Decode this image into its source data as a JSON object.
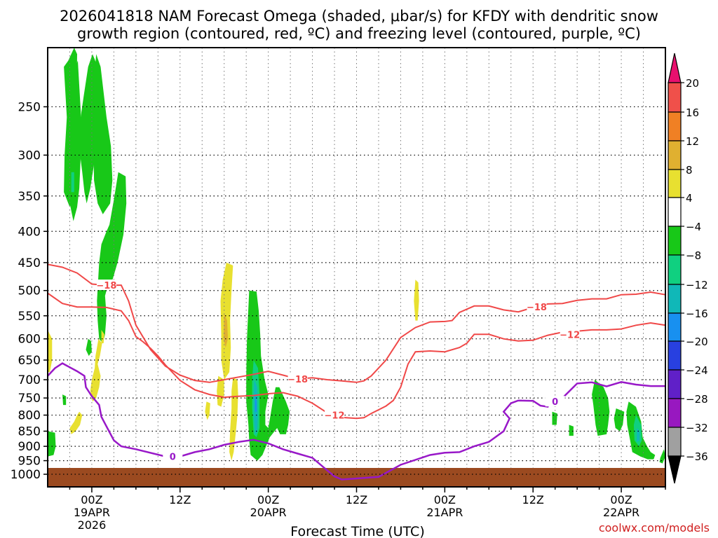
{
  "chart_data": {
    "type": "heatmap",
    "title_line1": "2026041818 NAM Forecast Omega (shaded, μbar/s) for KFDY with dendritic snow",
    "title_line2": "growth region (contoured, red, ºC) and freezing level (contoured, purple, ºC)",
    "xlabel": "Forecast Time (UTC)",
    "ylabel": "",
    "y_scale": "log-pressure",
    "y_ticks": [
      250,
      300,
      350,
      400,
      450,
      500,
      550,
      600,
      650,
      700,
      750,
      800,
      850,
      900,
      950,
      1000
    ],
    "y_range_hPa": [
      200,
      1000
    ],
    "x_range_hours": [
      18,
      102
    ],
    "x_ticks": [
      {
        "hour": 24,
        "label": "00Z",
        "sub1": "19APR",
        "sub2": "2026"
      },
      {
        "hour": 36,
        "label": "12Z",
        "sub1": "",
        "sub2": ""
      },
      {
        "hour": 48,
        "label": "00Z",
        "sub1": "20APR",
        "sub2": ""
      },
      {
        "hour": 60,
        "label": "12Z",
        "sub1": "",
        "sub2": ""
      },
      {
        "hour": 72,
        "label": "00Z",
        "sub1": "21APR",
        "sub2": ""
      },
      {
        "hour": 84,
        "label": "12Z",
        "sub1": "",
        "sub2": ""
      },
      {
        "hour": 96,
        "label": "00Z",
        "sub1": "22APR",
        "sub2": ""
      }
    ],
    "grid": true,
    "colorbar": {
      "labels": [
        "20",
        "16",
        "12",
        "8",
        "4",
        "−4",
        "−8",
        "−12",
        "−16",
        "−20",
        "−24",
        "−28",
        "−32",
        "−36"
      ],
      "colors": [
        "#e8106e",
        "#f0504a",
        "#f08024",
        "#e0b030",
        "#e8e030",
        "#ffffff",
        "#18c818",
        "#10d080",
        "#10b8b8",
        "#1890f0",
        "#2840e0",
        "#6020c8",
        "#9818c0",
        "#a0a0a0",
        "#000000"
      ]
    },
    "surface_color": "#9b4a20",
    "contours": {
      "dgz_color": "#f04848",
      "freezing_color": "#9818c8",
      "dgz_labels": [
        "−18",
        "−18",
        "−12",
        "−18",
        "−12"
      ],
      "freezing_labels": [
        "0",
        "0"
      ],
      "dgz_upper": [
        [
          18,
          453
        ],
        [
          20,
          458
        ],
        [
          22,
          468
        ],
        [
          24,
          488
        ],
        [
          26,
          490
        ],
        [
          28,
          490
        ],
        [
          29,
          520
        ],
        [
          30,
          570
        ],
        [
          32,
          625
        ],
        [
          34,
          665
        ],
        [
          36,
          688
        ],
        [
          38,
          702
        ],
        [
          40,
          707
        ],
        [
          42,
          700
        ],
        [
          44,
          693
        ],
        [
          46,
          686
        ],
        [
          48,
          678
        ],
        [
          50,
          688
        ],
        [
          52,
          698
        ],
        [
          54,
          695
        ],
        [
          56,
          700
        ],
        [
          58,
          703
        ],
        [
          60,
          707
        ],
        [
          61,
          703
        ],
        [
          62,
          690
        ],
        [
          64,
          650
        ],
        [
          66,
          597
        ],
        [
          68,
          575
        ],
        [
          70,
          563
        ],
        [
          72,
          562
        ],
        [
          73,
          560
        ],
        [
          74,
          543
        ],
        [
          76,
          530
        ],
        [
          78,
          530
        ],
        [
          80,
          538
        ],
        [
          82,
          542
        ],
        [
          84,
          533
        ],
        [
          86,
          526
        ],
        [
          88,
          525
        ],
        [
          90,
          519
        ],
        [
          92,
          516
        ],
        [
          94,
          516
        ],
        [
          96,
          508
        ],
        [
          98,
          507
        ],
        [
          100,
          503
        ],
        [
          102,
          508
        ]
      ],
      "dgz_lower": [
        [
          18,
          505
        ],
        [
          20,
          525
        ],
        [
          22,
          532
        ],
        [
          24,
          532
        ],
        [
          26,
          533
        ],
        [
          28,
          540
        ],
        [
          29,
          560
        ],
        [
          30,
          595
        ],
        [
          31,
          607
        ],
        [
          32,
          622
        ],
        [
          33,
          640
        ],
        [
          34,
          662
        ],
        [
          36,
          702
        ],
        [
          38,
          727
        ],
        [
          40,
          740
        ],
        [
          42,
          748
        ],
        [
          44,
          745
        ],
        [
          46,
          743
        ],
        [
          48,
          738
        ],
        [
          50,
          735
        ],
        [
          52,
          745
        ],
        [
          54,
          765
        ],
        [
          56,
          793
        ],
        [
          58,
          807
        ],
        [
          60,
          810
        ],
        [
          61,
          808
        ],
        [
          62,
          795
        ],
        [
          64,
          773
        ],
        [
          65,
          757
        ],
        [
          66,
          720
        ],
        [
          67,
          660
        ],
        [
          68,
          630
        ],
        [
          70,
          628
        ],
        [
          72,
          630
        ],
        [
          74,
          620
        ],
        [
          75,
          610
        ],
        [
          76,
          590
        ],
        [
          78,
          590
        ],
        [
          80,
          600
        ],
        [
          82,
          605
        ],
        [
          84,
          603
        ],
        [
          86,
          592
        ],
        [
          88,
          585
        ],
        [
          90,
          583
        ],
        [
          92,
          580
        ],
        [
          94,
          580
        ],
        [
          96,
          578
        ],
        [
          98,
          570
        ],
        [
          100,
          565
        ],
        [
          102,
          570
        ]
      ],
      "freezing": [
        [
          18,
          690
        ],
        [
          19,
          670
        ],
        [
          20,
          658
        ],
        [
          21,
          668
        ],
        [
          22,
          678
        ],
        [
          23,
          690
        ],
        [
          23.2,
          720
        ],
        [
          24,
          745
        ],
        [
          25,
          770
        ],
        [
          25.3,
          805
        ],
        [
          26,
          835
        ],
        [
          27,
          880
        ],
        [
          28,
          900
        ],
        [
          30,
          910
        ],
        [
          34,
          935
        ],
        [
          36,
          935
        ],
        [
          38,
          920
        ],
        [
          40,
          910
        ],
        [
          42,
          895
        ],
        [
          44,
          885
        ],
        [
          46,
          878
        ],
        [
          48,
          890
        ],
        [
          50,
          910
        ],
        [
          52,
          925
        ],
        [
          54,
          940
        ],
        [
          56,
          985
        ],
        [
          57,
          1008
        ],
        [
          58,
          1020
        ],
        [
          63,
          1010
        ],
        [
          66,
          965
        ],
        [
          70,
          930
        ],
        [
          72,
          922
        ],
        [
          74,
          920
        ],
        [
          76,
          900
        ],
        [
          78,
          885
        ],
        [
          80,
          850
        ],
        [
          80.8,
          810
        ],
        [
          80,
          790
        ],
        [
          81,
          765
        ],
        [
          82,
          757
        ],
        [
          84,
          758
        ],
        [
          85,
          772
        ],
        [
          86,
          775
        ],
        [
          86.5,
          750
        ],
        [
          88,
          750
        ],
        [
          90,
          710
        ],
        [
          92,
          707
        ],
        [
          94,
          718
        ],
        [
          96,
          706
        ],
        [
          98,
          713
        ],
        [
          100,
          717
        ],
        [
          102,
          717
        ]
      ]
    },
    "omega_regions": [
      {
        "color": "#18c818",
        "pts": [
          [
            23.0,
            400
          ],
          [
            22.0,
            420
          ],
          [
            21.5,
            460
          ]
        ]
      }
    ]
  },
  "credit": "coolwx.com/models"
}
